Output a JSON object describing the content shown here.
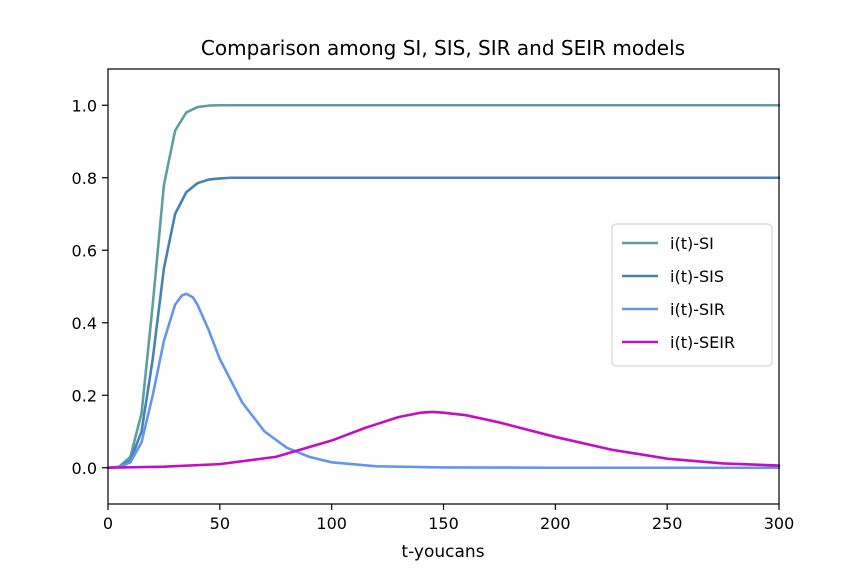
{
  "chart_data": {
    "type": "line",
    "title": "Comparison among SI, SIS, SIR and SEIR models",
    "xlabel": "t-youcans",
    "ylabel": "",
    "xlim": [
      0,
      300
    ],
    "ylim": [
      -0.1,
      1.1
    ],
    "xticks": [
      0,
      50,
      100,
      150,
      200,
      250,
      300
    ],
    "yticks": [
      0.0,
      0.2,
      0.4,
      0.6,
      0.8,
      1.0
    ],
    "xtick_labels": [
      "0",
      "50",
      "100",
      "150",
      "200",
      "250",
      "300"
    ],
    "ytick_labels": [
      "0.0",
      "0.2",
      "0.4",
      "0.6",
      "0.8",
      "1.0"
    ],
    "grid": false,
    "legend_position": "center-right",
    "series": [
      {
        "name": "i(t)-SI",
        "color": "#5f9ea0",
        "x": [
          0,
          5,
          10,
          15,
          20,
          25,
          30,
          35,
          40,
          45,
          50,
          60,
          80,
          100,
          150,
          200,
          250,
          300
        ],
        "y": [
          0.0,
          0.003,
          0.03,
          0.15,
          0.45,
          0.78,
          0.93,
          0.98,
          0.995,
          0.999,
          1.0,
          1.0,
          1.0,
          1.0,
          1.0,
          1.0,
          1.0,
          1.0
        ]
      },
      {
        "name": "i(t)-SIS",
        "color": "#4682b4",
        "x": [
          0,
          5,
          10,
          15,
          20,
          25,
          30,
          35,
          40,
          45,
          50,
          55,
          60,
          80,
          100,
          150,
          200,
          250,
          300
        ],
        "y": [
          0.0,
          0.002,
          0.02,
          0.1,
          0.3,
          0.55,
          0.7,
          0.76,
          0.785,
          0.795,
          0.798,
          0.8,
          0.8,
          0.8,
          0.8,
          0.8,
          0.8,
          0.8,
          0.8
        ]
      },
      {
        "name": "i(t)-SIR",
        "color": "#6495ed",
        "x": [
          0,
          5,
          10,
          15,
          20,
          25,
          30,
          33,
          35,
          38,
          40,
          45,
          50,
          60,
          70,
          80,
          90,
          100,
          120,
          150,
          200,
          300
        ],
        "y": [
          0.0,
          0.002,
          0.015,
          0.07,
          0.2,
          0.35,
          0.45,
          0.475,
          0.48,
          0.47,
          0.45,
          0.38,
          0.3,
          0.18,
          0.1,
          0.055,
          0.03,
          0.015,
          0.004,
          0.001,
          0.0,
          0.0
        ]
      },
      {
        "name": "i(t)-SEIR",
        "color": "#c10fc1",
        "x": [
          0,
          25,
          50,
          75,
          100,
          115,
          130,
          140,
          145,
          150,
          160,
          175,
          200,
          225,
          250,
          275,
          300
        ],
        "y": [
          0.0,
          0.003,
          0.01,
          0.03,
          0.075,
          0.11,
          0.14,
          0.152,
          0.154,
          0.152,
          0.145,
          0.125,
          0.085,
          0.05,
          0.025,
          0.012,
          0.006
        ]
      }
    ]
  }
}
